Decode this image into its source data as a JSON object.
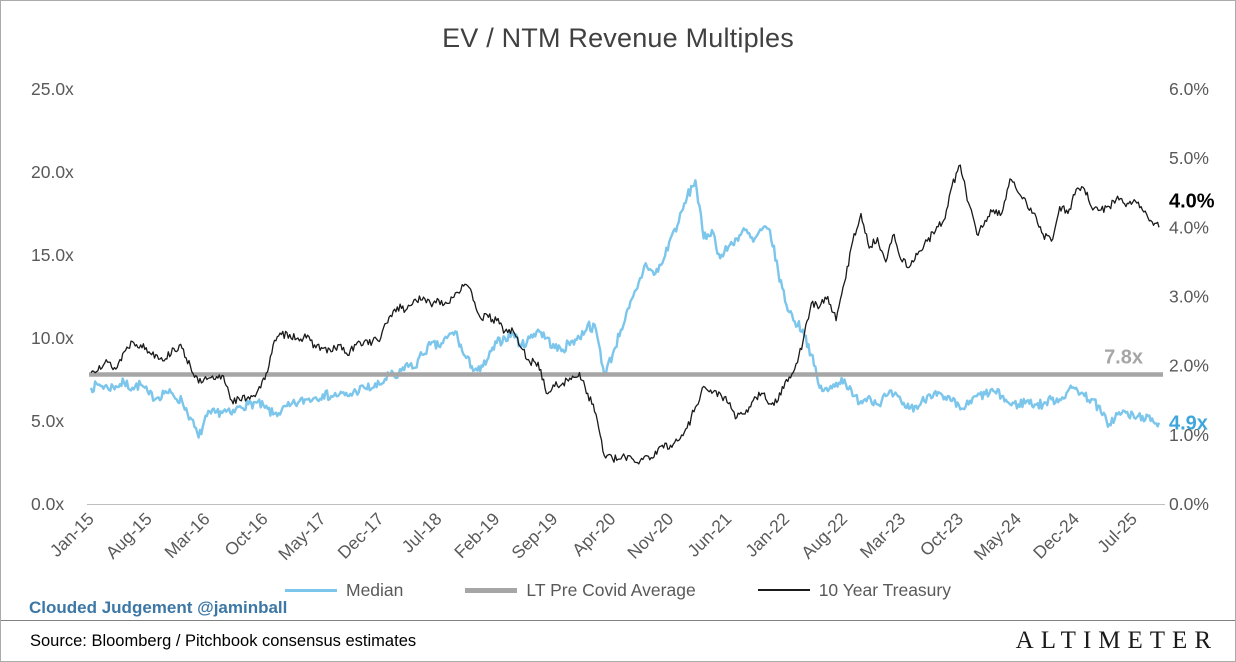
{
  "title": "EV / NTM Revenue Multiples",
  "annotations": {
    "average": "7.8x",
    "median": "4.9x",
    "treasury": "4.0%"
  },
  "footer": {
    "credit": "Clouded Judgement @jaminball",
    "source": "Source: Bloomberg / Pitchbook consensus estimates",
    "logo": "ALTIMETER"
  },
  "colors": {
    "median": "#7CC6EC",
    "median_label": "#3FA6DC",
    "average": "#A6A6A6",
    "average_label": "#A6A6A6",
    "treasury": "#1A1A1A",
    "treasury_label": "#000000",
    "title": "#404040",
    "axis_text": "#595959",
    "credit": "#3C77A5"
  },
  "chart_data": {
    "type": "line",
    "title": "EV / NTM Revenue Multiples",
    "frequency": "monthly",
    "x_start": "Jan-15",
    "x_end": "Oct-25",
    "grid": false,
    "legend_position": "bottom",
    "x_axis": {
      "tick_month_offsets": [
        0,
        7,
        14,
        21,
        28,
        35,
        42,
        49,
        56,
        63,
        70,
        77,
        84,
        91,
        98,
        105,
        112,
        119,
        126
      ],
      "tick_labels": [
        "Jan-15",
        "Aug-15",
        "Mar-16",
        "Oct-16",
        "May-17",
        "Dec-17",
        "Jul-18",
        "Feb-19",
        "Sep-19",
        "Apr-20",
        "Nov-20",
        "Jun-21",
        "Jan-22",
        "Aug-22",
        "Mar-23",
        "Oct-23",
        "May-24",
        "Dec-24",
        "Jul-25"
      ]
    },
    "left_axis": {
      "min": 0,
      "max": 25,
      "tick_values": [
        25,
        20,
        15,
        10,
        5,
        0
      ],
      "tick_labels": [
        "25.0x",
        "20.0x",
        "15.0x",
        "10.0x",
        "5.0x",
        "0.0x"
      ]
    },
    "right_axis": {
      "min": 0,
      "max": 6,
      "tick_values": [
        6,
        5,
        4,
        3,
        2,
        1,
        0
      ],
      "tick_labels": [
        "6.0%",
        "5.0%",
        "4.0%",
        "3.0%",
        "2.0%",
        "1.0%",
        "0.0%"
      ]
    },
    "series": [
      {
        "name": "Median",
        "axis": "left",
        "color_key": "median",
        "values": [
          7.0,
          7.2,
          7.0,
          7.1,
          7.3,
          7.0,
          7.2,
          6.6,
          6.4,
          6.8,
          6.5,
          6.2,
          5.2,
          4.0,
          5.3,
          5.5,
          5.6,
          5.4,
          5.9,
          6.0,
          6.1,
          5.8,
          5.4,
          5.6,
          5.9,
          6.1,
          6.3,
          6.4,
          6.6,
          6.5,
          6.6,
          6.5,
          6.8,
          7.0,
          7.0,
          7.2,
          7.8,
          7.6,
          8.4,
          8.2,
          9.0,
          9.6,
          9.5,
          10.0,
          10.4,
          9.0,
          8.3,
          8.0,
          8.8,
          9.7,
          10.0,
          10.3,
          9.5,
          10.0,
          10.5,
          10.0,
          9.4,
          9.3,
          9.8,
          10.0,
          10.8,
          10.5,
          7.8,
          9.0,
          10.5,
          11.8,
          13.0,
          14.5,
          13.8,
          14.5,
          16.0,
          17.0,
          18.5,
          19.5,
          16.0,
          16.5,
          14.8,
          15.5,
          16.0,
          16.5,
          15.8,
          16.5,
          16.5,
          14.0,
          12.0,
          11.0,
          10.5,
          9.0,
          7.0,
          6.8,
          7.3,
          7.5,
          6.5,
          6.2,
          6.5,
          6.0,
          6.5,
          6.6,
          6.0,
          5.8,
          5.9,
          6.5,
          6.8,
          6.3,
          6.2,
          5.7,
          6.0,
          6.5,
          6.6,
          6.8,
          6.5,
          6.0,
          6.0,
          6.2,
          6.0,
          6.0,
          6.3,
          6.3,
          6.8,
          7.0,
          6.5,
          6.3,
          5.5,
          4.8,
          5.4,
          5.5,
          5.2,
          5.3,
          5.0,
          4.9
        ]
      },
      {
        "name": "LT Pre Covid Average",
        "axis": "left",
        "color_key": "average",
        "constant": 7.8
      },
      {
        "name": "10 Year Treasury",
        "axis": "right",
        "color_key": "treasury",
        "values": [
          1.9,
          2.0,
          2.05,
          1.95,
          2.2,
          2.35,
          2.3,
          2.2,
          2.15,
          2.1,
          2.25,
          2.25,
          2.0,
          1.75,
          1.8,
          1.8,
          1.85,
          1.5,
          1.5,
          1.55,
          1.6,
          1.8,
          2.3,
          2.45,
          2.45,
          2.4,
          2.4,
          2.3,
          2.25,
          2.2,
          2.3,
          2.15,
          2.3,
          2.35,
          2.35,
          2.4,
          2.7,
          2.85,
          2.8,
          2.95,
          2.95,
          2.9,
          2.95,
          2.9,
          3.05,
          3.15,
          3.05,
          2.7,
          2.7,
          2.65,
          2.5,
          2.5,
          2.25,
          2.05,
          2.05,
          1.6,
          1.7,
          1.75,
          1.8,
          1.9,
          1.6,
          1.3,
          0.7,
          0.65,
          0.65,
          0.7,
          0.6,
          0.7,
          0.68,
          0.85,
          0.85,
          0.92,
          1.1,
          1.4,
          1.7,
          1.6,
          1.6,
          1.45,
          1.25,
          1.3,
          1.5,
          1.6,
          1.45,
          1.5,
          1.8,
          1.95,
          2.35,
          2.9,
          2.85,
          3.0,
          2.65,
          3.2,
          3.8,
          4.2,
          3.7,
          3.85,
          3.5,
          3.9,
          3.5,
          3.45,
          3.65,
          3.8,
          3.95,
          4.1,
          4.6,
          4.9,
          4.35,
          3.9,
          4.1,
          4.25,
          4.2,
          4.7,
          4.5,
          4.35,
          4.2,
          3.9,
          3.8,
          4.3,
          4.2,
          4.55,
          4.55,
          4.25,
          4.25,
          4.3,
          4.45,
          4.3,
          4.4,
          4.25,
          4.1,
          4.0
        ]
      }
    ],
    "legend": [
      "Median",
      "LT Pre Covid Average",
      "10 Year Treasury"
    ]
  }
}
